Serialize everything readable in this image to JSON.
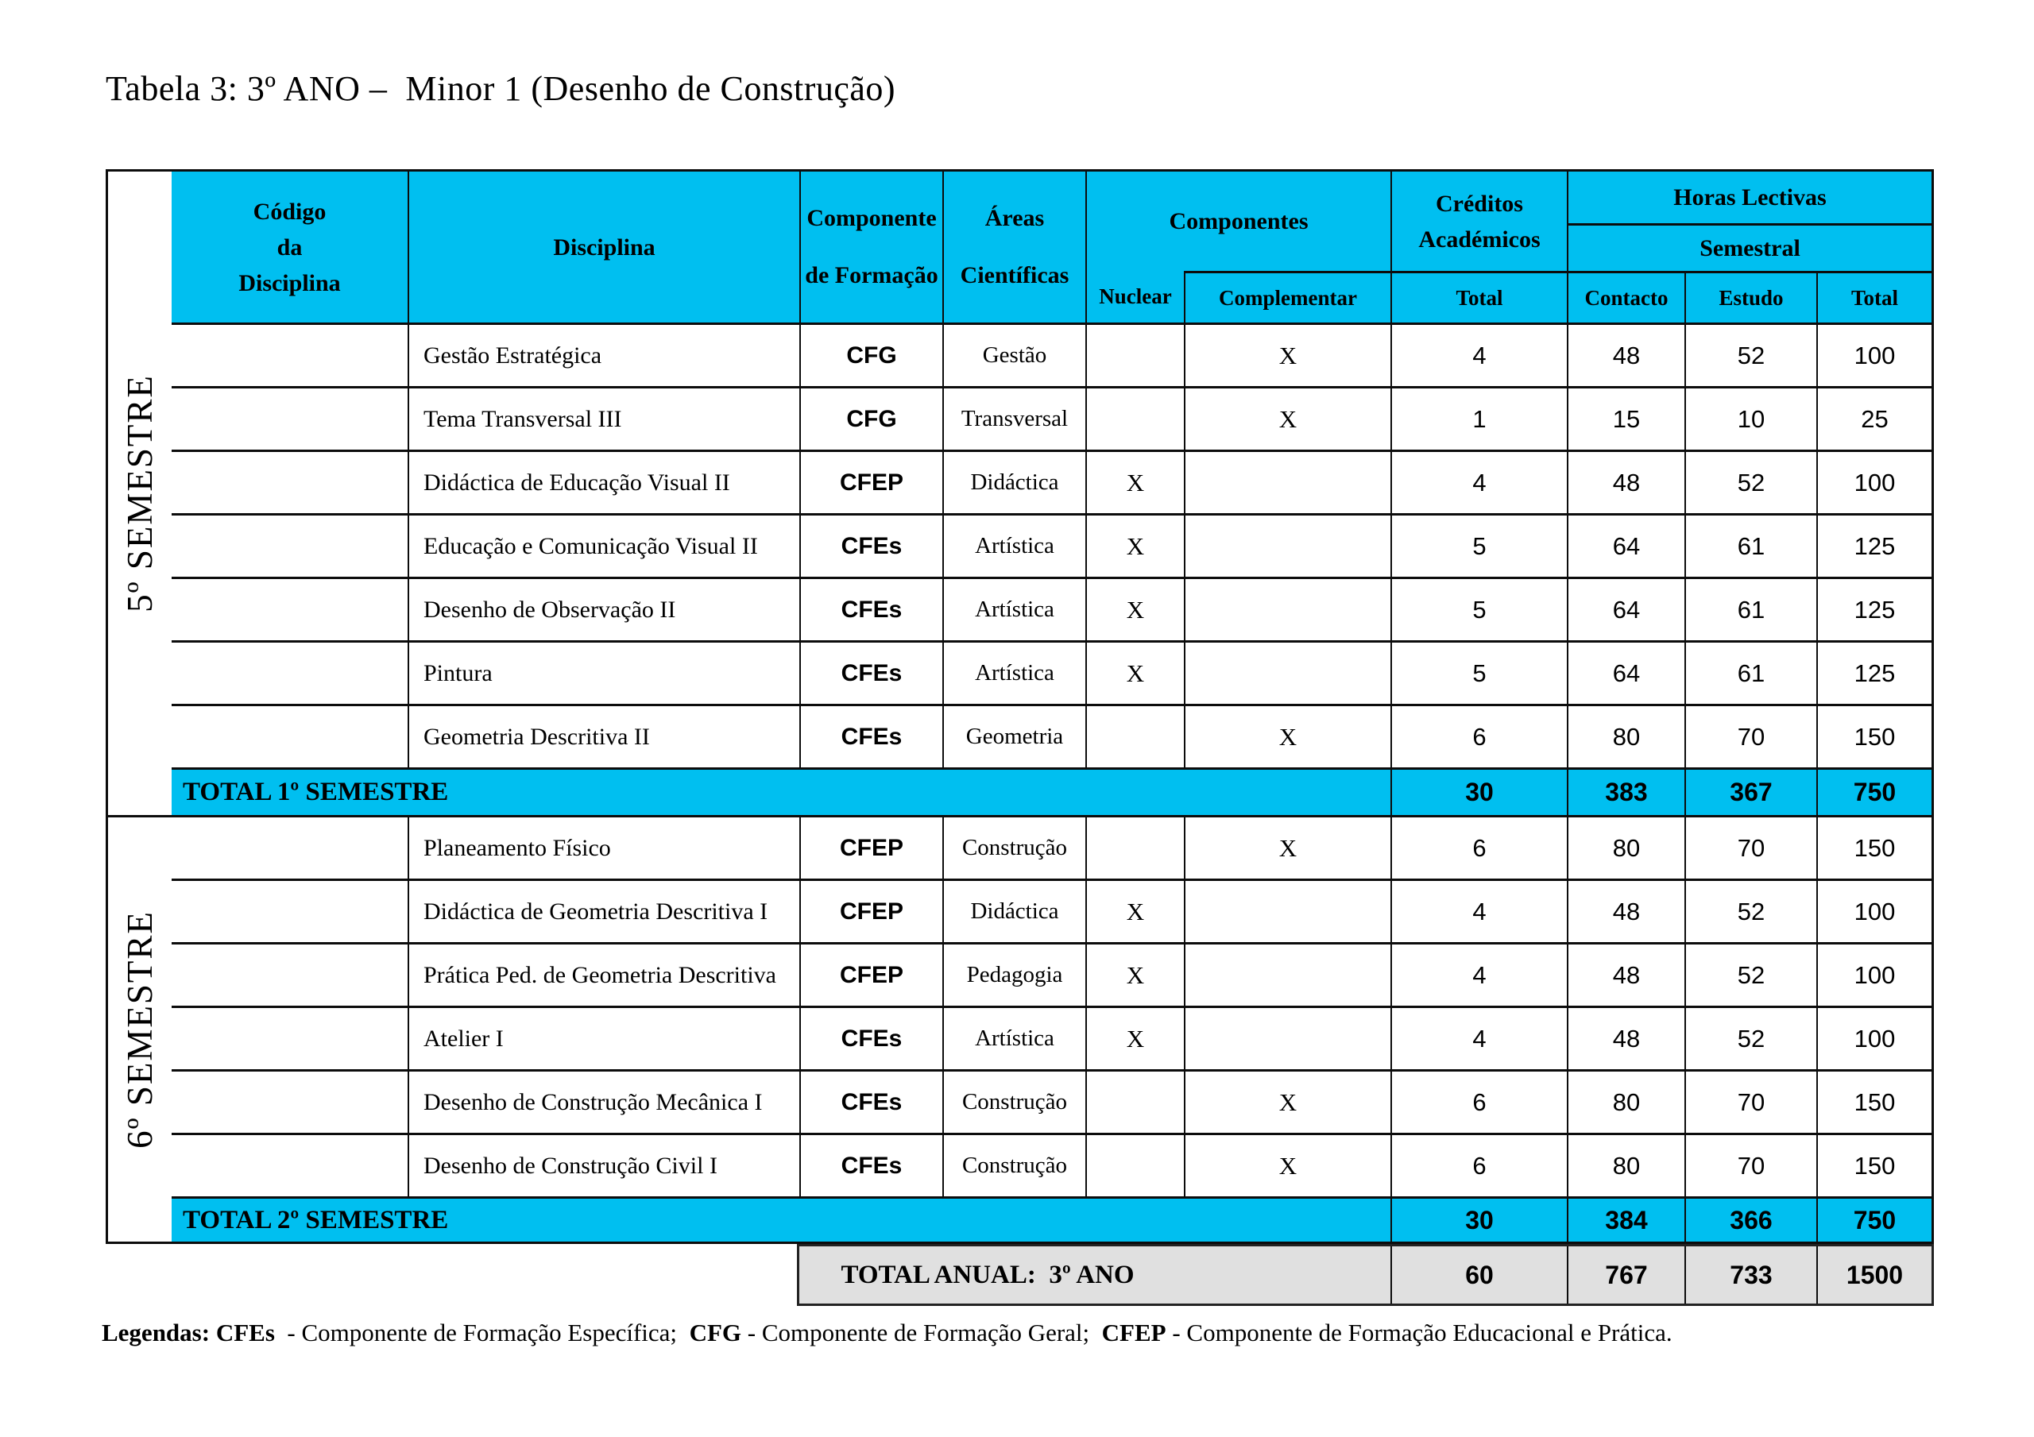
{
  "title": "Tabela 3: 3º ANO –  Minor 1 (Desenho de Construção)",
  "colors": {
    "cyan": "#00bff0",
    "grey": "#e0e0e0",
    "border": "#0c0c0c"
  },
  "header": {
    "codigo": "Código\nda\nDisciplina",
    "disciplina": "Disciplina",
    "componente": "Componente\nde Formação",
    "areas": "Áreas\nCientíficas",
    "componentes": "Componentes",
    "nuclear": "Nuclear",
    "complementar": "Complementar",
    "creditos": "Créditos\nAcadémicos",
    "creditos_total": "Total",
    "horas_lectivas": "Horas Lectivas",
    "semestral": "Semestral",
    "contacto": "Contacto",
    "estudo": "Estudo",
    "horas_total": "Total"
  },
  "semesters": [
    {
      "label": "5º SEMESTRE",
      "rows": [
        {
          "codigo": "",
          "disciplina": "Gestão Estratégica",
          "componente": "CFG",
          "area": "Gestão",
          "nuclear": "",
          "complementar": "X",
          "creditos": "4",
          "contacto": "48",
          "estudo": "52",
          "total": "100"
        },
        {
          "codigo": "",
          "disciplina": "Tema Transversal III",
          "componente": "CFG",
          "area": "Transversal",
          "nuclear": "",
          "complementar": "X",
          "creditos": "1",
          "contacto": "15",
          "estudo": "10",
          "total": "25"
        },
        {
          "codigo": "",
          "disciplina": "Didáctica de Educação Visual II",
          "componente": "CFEP",
          "area": "Didáctica",
          "nuclear": "X",
          "complementar": "",
          "creditos": "4",
          "contacto": "48",
          "estudo": "52",
          "total": "100"
        },
        {
          "codigo": "",
          "disciplina": "Educação e Comunicação Visual II",
          "componente": "CFEs",
          "area": "Artística",
          "nuclear": "X",
          "complementar": "",
          "creditos": "5",
          "contacto": "64",
          "estudo": "61",
          "total": "125"
        },
        {
          "codigo": "",
          "disciplina": "Desenho de Observação II",
          "componente": "CFEs",
          "area": "Artística",
          "nuclear": "X",
          "complementar": "",
          "creditos": "5",
          "contacto": "64",
          "estudo": "61",
          "total": "125"
        },
        {
          "codigo": "",
          "disciplina": "Pintura",
          "componente": "CFEs",
          "area": "Artística",
          "nuclear": "X",
          "complementar": "",
          "creditos": "5",
          "contacto": "64",
          "estudo": "61",
          "total": "125"
        },
        {
          "codigo": "",
          "disciplina": "Geometria Descritiva II",
          "componente": "CFEs",
          "area": "Geometria",
          "nuclear": "",
          "complementar": "X",
          "creditos": "6",
          "contacto": "80",
          "estudo": "70",
          "total": "150"
        }
      ],
      "total": {
        "label": "TOTAL 1º SEMESTRE",
        "creditos": "30",
        "contacto": "383",
        "estudo": "367",
        "total": "750"
      }
    },
    {
      "label": "6º SEMESTRE",
      "rows": [
        {
          "codigo": "",
          "disciplina": "Planeamento Físico",
          "componente": "CFEP",
          "area": "Construção",
          "nuclear": "",
          "complementar": "X",
          "creditos": "6",
          "contacto": "80",
          "estudo": "70",
          "total": "150"
        },
        {
          "codigo": "",
          "disciplina": "Didáctica de Geometria Descritiva I",
          "componente": "CFEP",
          "area": "Didáctica",
          "nuclear": "X",
          "complementar": "",
          "creditos": "4",
          "contacto": "48",
          "estudo": "52",
          "total": "100"
        },
        {
          "codigo": "",
          "disciplina": "Prática Ped. de Geometria Descritiva",
          "componente": "CFEP",
          "area": "Pedagogia",
          "nuclear": "X",
          "complementar": "",
          "creditos": "4",
          "contacto": "48",
          "estudo": "52",
          "total": "100"
        },
        {
          "codigo": "",
          "disciplina": "Atelier I",
          "componente": "CFEs",
          "area": "Artística",
          "nuclear": "X",
          "complementar": "",
          "creditos": "4",
          "contacto": "48",
          "estudo": "52",
          "total": "100"
        },
        {
          "codigo": "",
          "disciplina": "Desenho de Construção Mecânica I",
          "componente": "CFEs",
          "area": "Construção",
          "nuclear": "",
          "complementar": "X",
          "creditos": "6",
          "contacto": "80",
          "estudo": "70",
          "total": "150"
        },
        {
          "codigo": "",
          "disciplina": "Desenho de Construção Civil I",
          "componente": "CFEs",
          "area": "Construção",
          "nuclear": "",
          "complementar": "X",
          "creditos": "6",
          "contacto": "80",
          "estudo": "70",
          "total": "150"
        }
      ],
      "total": {
        "label": "TOTAL 2º SEMESTRE",
        "creditos": "30",
        "contacto": "384",
        "estudo": "366",
        "total": "750"
      }
    }
  ],
  "annual_total": {
    "label": "TOTAL ANUAL:  3º ANO",
    "creditos": "60",
    "contacto": "767",
    "estudo": "733",
    "total": "1500"
  },
  "legend": {
    "segments": [
      {
        "text": "Legendas: CFEs ",
        "bold": true
      },
      {
        "text": " - Componente de Formação Específica;  ",
        "bold": false
      },
      {
        "text": "CFG",
        "bold": true
      },
      {
        "text": " - Componente de Formação Geral;  ",
        "bold": false
      },
      {
        "text": "CFEP",
        "bold": true
      },
      {
        "text": " - Componente de Formação Educacional e Prática.",
        "bold": false
      }
    ]
  }
}
